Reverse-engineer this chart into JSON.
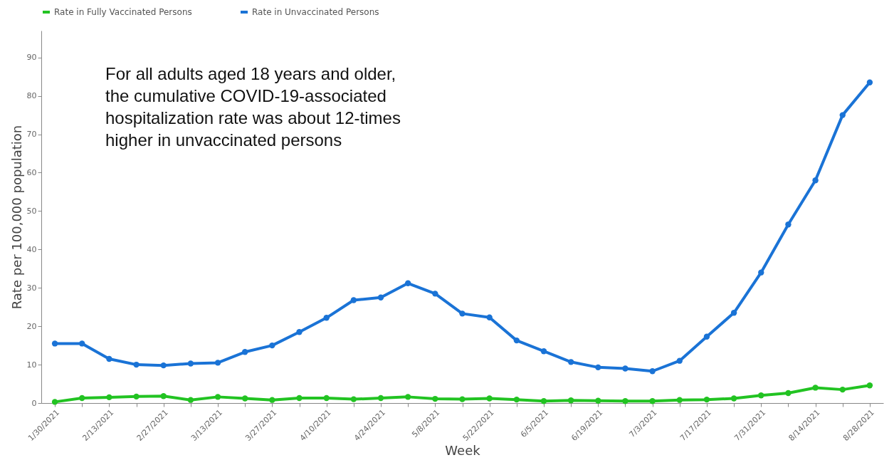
{
  "chart_data": {
    "type": "line",
    "xlabel": "Week",
    "ylabel": "Rate per 100,000 population",
    "categories": [
      "1/30/2021",
      null,
      "2/13/2021",
      null,
      "2/27/2021",
      null,
      "3/13/2021",
      null,
      "3/27/2021",
      null,
      "4/10/2021",
      null,
      "4/24/2021",
      null,
      "5/8/2021",
      null,
      "5/22/2021",
      null,
      "6/5/2021",
      null,
      "6/19/2021",
      null,
      "7/3/2021",
      null,
      "7/17/2021",
      null,
      "7/31/2021",
      null,
      "8/14/2021",
      null,
      "8/28/2021"
    ],
    "series": [
      {
        "name": "Rate in Fully Vaccinated Persons",
        "color": "#22c322",
        "values": [
          0.3,
          1.3,
          1.5,
          1.7,
          1.8,
          0.8,
          1.6,
          1.2,
          0.8,
          1.3,
          1.3,
          1.0,
          1.3,
          1.6,
          1.1,
          1.0,
          1.2,
          0.9,
          0.5,
          0.7,
          0.6,
          0.5,
          0.5,
          0.8,
          0.9,
          1.2,
          2.0,
          2.6,
          4.0,
          3.5,
          4.6
        ]
      },
      {
        "name": "Rate in Unvaccinated Persons",
        "color": "#1a73d6",
        "values": [
          15.5,
          15.5,
          11.5,
          10.0,
          9.8,
          10.3,
          10.5,
          13.3,
          15.0,
          18.5,
          22.2,
          26.8,
          27.5,
          31.2,
          28.5,
          23.3,
          22.3,
          16.3,
          13.5,
          10.7,
          9.3,
          9.0,
          8.3,
          11.0,
          17.3,
          23.5,
          34.0,
          46.5,
          58.0,
          75.0,
          83.5
        ]
      }
    ],
    "ylim": [
      0,
      97
    ],
    "yticks": [
      0,
      10,
      20,
      30,
      40,
      50,
      60,
      70,
      80,
      90
    ],
    "grid": false,
    "legend": "top",
    "marker": "circle",
    "line_style": "solid",
    "annotations": [
      "For all adults aged 18 years and older, the cumulative COVID-19-associated hospitalization rate was about 12-times higher in unvaccinated persons"
    ]
  }
}
